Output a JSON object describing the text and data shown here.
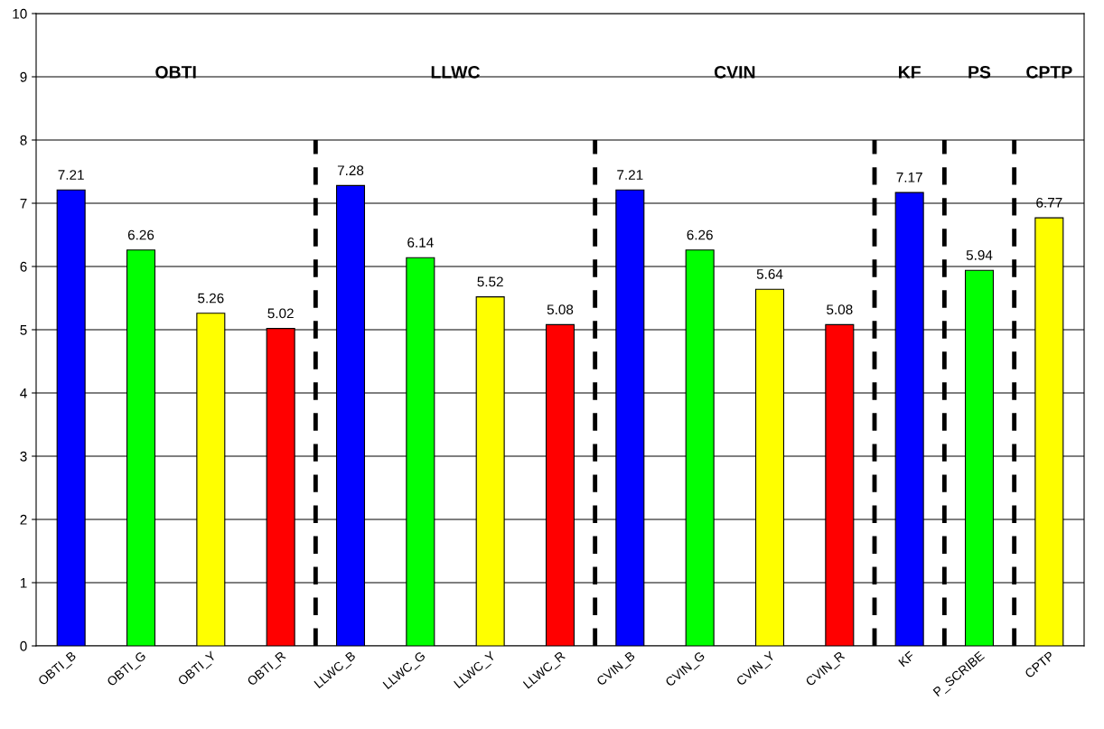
{
  "chart_data": {
    "type": "bar",
    "categories": [
      "OBTI_B",
      "OBTI_G",
      "OBTI_Y",
      "OBTI_R",
      "LLWC_B",
      "LLWC_G",
      "LLWC_Y",
      "LLWC_R",
      "CVIN_B",
      "CVIN_G",
      "CVIN_Y",
      "CVIN_R",
      "KF",
      "P_SCRIBE",
      "CPTP"
    ],
    "values": [
      7.21,
      6.26,
      5.26,
      5.02,
      7.28,
      6.14,
      5.52,
      5.08,
      7.21,
      6.26,
      5.64,
      5.08,
      7.17,
      5.94,
      6.77
    ],
    "colors": [
      "#0000ff",
      "#00ff00",
      "#ffff00",
      "#ff0000",
      "#0000ff",
      "#00ff00",
      "#ffff00",
      "#ff0000",
      "#0000ff",
      "#00ff00",
      "#ffff00",
      "#ff0000",
      "#0000ff",
      "#00ff00",
      "#ffff00"
    ],
    "data_labels": true,
    "ylim": [
      0,
      10
    ],
    "yticks": [
      0,
      1,
      2,
      3,
      4,
      5,
      6,
      7,
      8,
      9,
      10
    ],
    "grid": "y",
    "legend": false,
    "annotations": [
      "OBTI",
      "LLWC",
      "CVIN",
      "KF",
      "PS",
      "CPTP"
    ]
  }
}
